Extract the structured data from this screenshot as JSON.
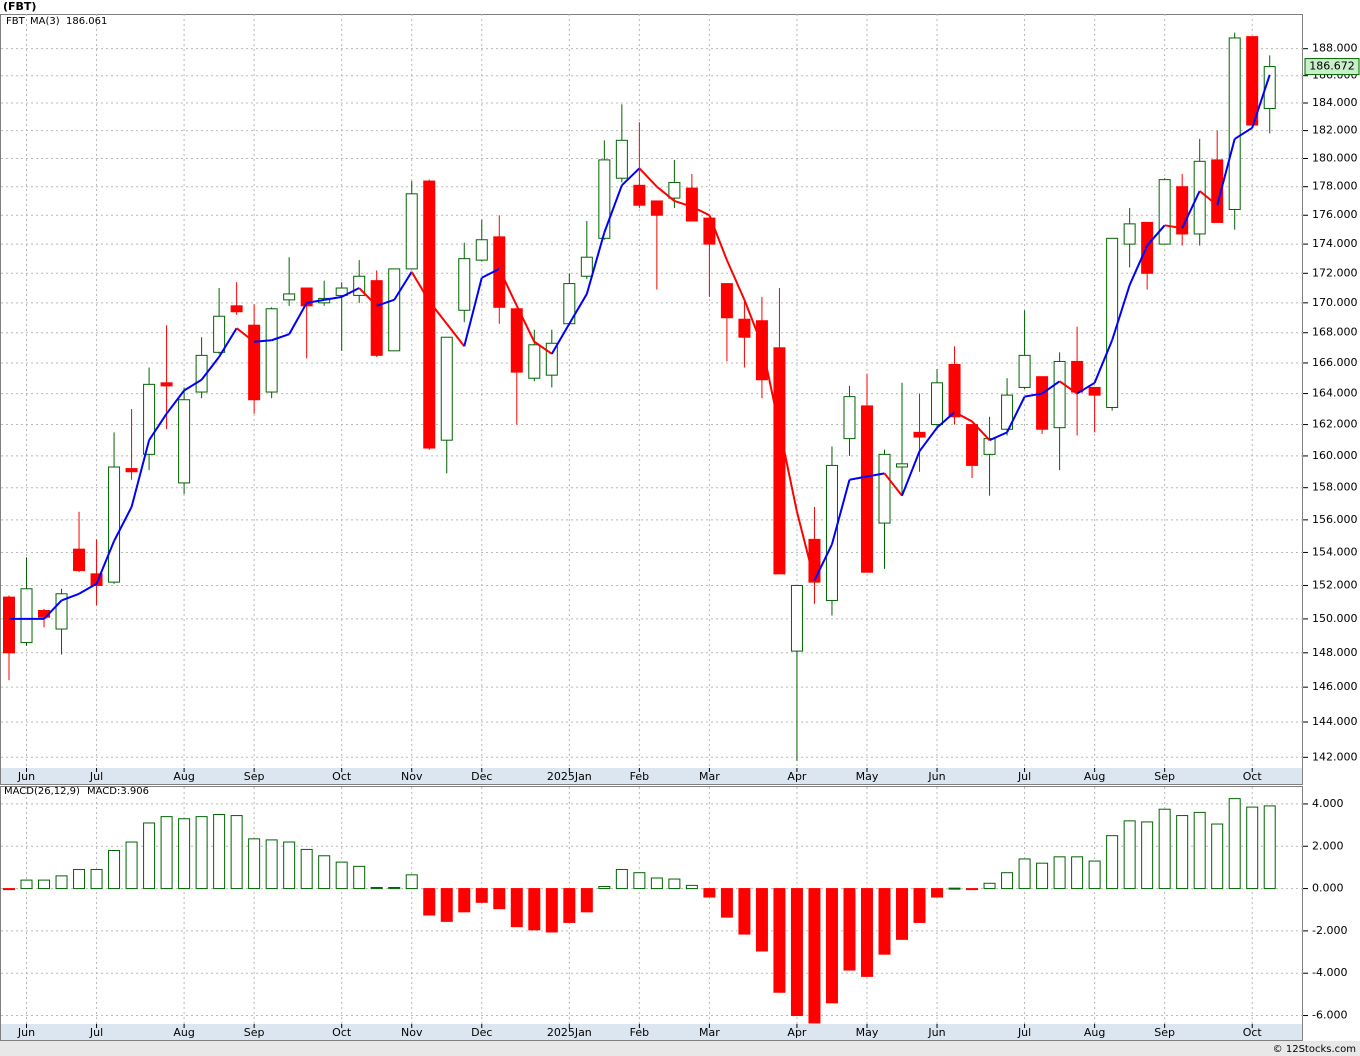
{
  "chart_data": [
    {
      "type": "candlestick",
      "title": "(FBT)",
      "log_scale": true,
      "grid": true,
      "categories": [
        null,
        "Jun",
        null,
        null,
        null,
        "Jul",
        null,
        null,
        null,
        null,
        "Aug",
        null,
        null,
        null,
        "Sep",
        null,
        null,
        null,
        null,
        "Oct",
        null,
        null,
        null,
        "Nov",
        null,
        null,
        null,
        "Dec",
        null,
        null,
        null,
        null,
        "2025Jan",
        null,
        null,
        null,
        "Feb",
        null,
        null,
        null,
        "Mar",
        null,
        null,
        null,
        null,
        "Apr",
        null,
        null,
        null,
        "May",
        null,
        null,
        null,
        "Jun",
        null,
        null,
        null,
        null,
        "Jul",
        null,
        null,
        null,
        "Aug",
        null,
        null,
        null,
        "Sep",
        null,
        null,
        null,
        null,
        "Oct",
        null
      ],
      "series": [
        {
          "name": "FBT",
          "color": "#0000ff",
          "up_color": "#006400",
          "down_color": "#ff0000",
          "open": [
            151.3,
            148.6,
            150.5,
            149.4,
            154.2,
            152.7,
            152.2,
            159.2,
            160.1,
            164.7,
            158.3,
            164.1,
            166.7,
            169.8,
            168.5,
            164.1,
            170.2,
            171.0,
            170.0,
            170.5,
            170.5,
            171.5,
            166.8,
            172.3,
            178.4,
            161.0,
            169.5,
            172.9,
            174.5,
            169.6,
            165.0,
            165.2,
            168.6,
            171.8,
            174.4,
            178.6,
            178.1,
            177.0,
            177.2,
            177.9,
            175.8,
            171.3,
            168.9,
            168.8,
            167.0,
            148.1,
            154.8,
            151.1,
            161.1,
            163.2,
            155.8,
            159.3,
            161.5,
            162.0,
            165.9,
            162.0,
            160.1,
            161.7,
            164.4,
            165.1,
            161.8,
            166.1,
            164.4,
            163.1,
            174.0,
            175.5,
            174.0,
            178.0,
            174.7,
            179.9,
            176.4,
            188.9,
            183.6
          ],
          "high": [
            151.4,
            153.7,
            150.6,
            151.8,
            156.5,
            154.8,
            161.5,
            163.0,
            165.7,
            168.5,
            164.4,
            167.7,
            171.0,
            171.4,
            169.9,
            169.7,
            173.1,
            171.0,
            171.5,
            171.4,
            172.9,
            172.2,
            172.3,
            178.4,
            178.5,
            167.7,
            174.1,
            175.7,
            176.0,
            169.6,
            168.2,
            168.2,
            172.0,
            175.6,
            181.3,
            183.9,
            182.6,
            177.0,
            179.9,
            178.9,
            175.8,
            171.3,
            170.2,
            170.4,
            171.0,
            152.0,
            156.8,
            160.6,
            164.5,
            165.3,
            160.4,
            164.7,
            164.0,
            165.6,
            167.1,
            162.0,
            162.5,
            165.0,
            169.5,
            165.1,
            166.7,
            168.4,
            164.4,
            174.4,
            176.5,
            175.5,
            178.6,
            178.9,
            181.4,
            182.0,
            189.2,
            188.9,
            187.5
          ],
          "low": [
            146.4,
            148.4,
            149.5,
            147.9,
            152.8,
            150.8,
            152.1,
            158.5,
            159.1,
            161.7,
            157.6,
            163.7,
            166.6,
            169.2,
            162.7,
            163.7,
            169.8,
            166.3,
            169.8,
            166.8,
            170.0,
            166.4,
            166.8,
            172.3,
            160.4,
            158.9,
            168.7,
            172.8,
            168.6,
            162.0,
            164.8,
            164.4,
            168.5,
            171.6,
            174.3,
            178.3,
            176.5,
            170.9,
            176.5,
            175.6,
            170.4,
            166.1,
            165.7,
            163.7,
            152.7,
            141.8,
            150.9,
            150.2,
            160.0,
            152.8,
            153.0,
            157.5,
            159.0,
            161.7,
            162.0,
            158.6,
            157.5,
            161.3,
            164.3,
            161.4,
            159.1,
            161.3,
            161.5,
            162.9,
            172.4,
            170.9,
            174.0,
            173.9,
            173.9,
            175.5,
            175.0,
            182.4,
            181.8
          ],
          "close": [
            148.0,
            151.8,
            150.1,
            151.5,
            152.9,
            152.0,
            159.3,
            159.0,
            164.6,
            164.5,
            163.6,
            166.5,
            169.1,
            169.4,
            163.6,
            169.6,
            170.6,
            169.8,
            170.3,
            171.0,
            171.8,
            166.5,
            172.3,
            177.5,
            160.5,
            167.7,
            173.0,
            174.3,
            169.7,
            165.4,
            167.2,
            167.3,
            171.3,
            173.1,
            179.9,
            181.3,
            176.7,
            176.0,
            178.3,
            175.6,
            174.0,
            169.0,
            167.7,
            164.9,
            152.7,
            152.0,
            152.2,
            159.4,
            163.8,
            152.8,
            160.1,
            159.5,
            161.2,
            164.7,
            162.5,
            159.4,
            161.1,
            163.9,
            166.5,
            161.7,
            166.1,
            164.1,
            163.9,
            174.4,
            175.4,
            172.0,
            178.5,
            174.7,
            179.8,
            175.5,
            188.8,
            182.4,
            186.672
          ]
        },
        {
          "name": "MA(3)",
          "type": "line",
          "color": "#0000ff",
          "down_color": "#ff0000",
          "values": [
            150.0,
            150.0,
            150.0,
            151.1,
            151.5,
            152.1,
            154.7,
            156.8,
            161.0,
            162.7,
            164.2,
            164.9,
            166.4,
            168.3,
            167.4,
            167.5,
            167.9,
            170.0,
            170.2,
            170.4,
            171.0,
            169.8,
            170.2,
            172.1,
            170.1,
            168.6,
            167.1,
            171.7,
            172.3,
            169.8,
            167.4,
            166.6,
            168.6,
            170.6,
            174.8,
            178.1,
            179.3,
            178.0,
            177.0,
            176.6,
            176.0,
            172.9,
            170.2,
            167.2,
            161.8,
            156.5,
            152.3,
            154.5,
            158.5,
            158.7,
            158.9,
            157.5,
            160.3,
            161.8,
            162.8,
            162.2,
            161.0,
            161.5,
            163.8,
            164.0,
            164.8,
            164.0,
            164.7,
            167.5,
            171.2,
            173.9,
            175.3,
            175.1,
            177.7,
            176.7,
            181.4,
            182.2,
            186.061
          ]
        }
      ],
      "ylim": [
        141.4,
        190.6
      ],
      "yticks": [
        {
          "value": 142,
          "label": "142.000"
        },
        {
          "value": 144,
          "label": "144.000"
        },
        {
          "value": 146,
          "label": "146.000"
        },
        {
          "value": 148,
          "label": "148.000"
        },
        {
          "value": 150,
          "label": "150.000"
        },
        {
          "value": 152,
          "label": "152.000"
        },
        {
          "value": 154,
          "label": "154.000"
        },
        {
          "value": 156,
          "label": "156.000"
        },
        {
          "value": 158,
          "label": "158.000"
        },
        {
          "value": 160,
          "label": "160.000"
        },
        {
          "value": 162,
          "label": "162.000"
        },
        {
          "value": 164,
          "label": "164.000"
        },
        {
          "value": 166,
          "label": "166.000"
        },
        {
          "value": 168,
          "label": "168.000"
        },
        {
          "value": 170,
          "label": "170.000"
        },
        {
          "value": 172,
          "label": "172.000"
        },
        {
          "value": 174,
          "label": "174.000"
        },
        {
          "value": 176,
          "label": "176.000"
        },
        {
          "value": 178,
          "label": "178.000"
        },
        {
          "value": 180,
          "label": "180.000"
        },
        {
          "value": 182,
          "label": "182.000"
        },
        {
          "value": 184,
          "label": "184.000"
        },
        {
          "value": 186,
          "label": "186.000"
        },
        {
          "value": 188,
          "label": "188.000"
        }
      ],
      "last_label_color": "#c8f0c8"
    },
    {
      "type": "bar",
      "title": "MACD(26,12,9)",
      "grid": true,
      "categories": [
        null,
        "Jun",
        null,
        null,
        null,
        "Jul",
        null,
        null,
        null,
        null,
        "Aug",
        null,
        null,
        null,
        "Sep",
        null,
        null,
        null,
        null,
        "Oct",
        null,
        null,
        null,
        "Nov",
        null,
        null,
        null,
        "Dec",
        null,
        null,
        null,
        null,
        "2025Jan",
        null,
        null,
        null,
        "Feb",
        null,
        null,
        null,
        "Mar",
        null,
        null,
        null,
        null,
        "Apr",
        null,
        null,
        null,
        "May",
        null,
        null,
        null,
        "Jun",
        null,
        null,
        null,
        null,
        "Jul",
        null,
        null,
        null,
        "Aug",
        null,
        null,
        null,
        "Sep",
        null,
        null,
        null,
        null,
        "Oct",
        null
      ],
      "series": [
        {
          "name": "MACD:3.906",
          "color": "#006400",
          "down_color": "#ff0000",
          "values": [
            -0.05,
            0.4,
            0.4,
            0.6,
            0.9,
            0.9,
            1.8,
            2.2,
            3.1,
            3.4,
            3.3,
            3.4,
            3.5,
            3.45,
            2.35,
            2.3,
            2.2,
            1.85,
            1.55,
            1.25,
            1.05,
            0.05,
            0.05,
            0.65,
            -1.25,
            -1.55,
            -1.1,
            -0.65,
            -0.95,
            -1.8,
            -1.95,
            -2.05,
            -1.6,
            -1.1,
            0.1,
            0.9,
            0.75,
            0.5,
            0.45,
            0.15,
            -0.4,
            -1.35,
            -2.15,
            -2.95,
            -4.9,
            -6.0,
            -6.35,
            -5.4,
            -3.85,
            -4.15,
            -3.1,
            -2.4,
            -1.6,
            -0.4,
            0.02,
            -0.05,
            0.25,
            0.75,
            1.4,
            1.2,
            1.5,
            1.5,
            1.3,
            2.5,
            3.2,
            3.15,
            3.75,
            3.45,
            3.6,
            3.05,
            4.25,
            3.85,
            3.906
          ]
        }
      ],
      "ylim": [
        -6.4,
        4.8
      ],
      "yticks": [
        {
          "value": -6,
          "label": "-6.000"
        },
        {
          "value": -4,
          "label": "-4.000"
        },
        {
          "value": -2,
          "label": "-2.000"
        },
        {
          "value": 0,
          "label": "0.000"
        },
        {
          "value": 2,
          "label": "2.000"
        },
        {
          "value": 4,
          "label": "4.000"
        }
      ]
    }
  ],
  "footer": "© 12Stocks.com"
}
